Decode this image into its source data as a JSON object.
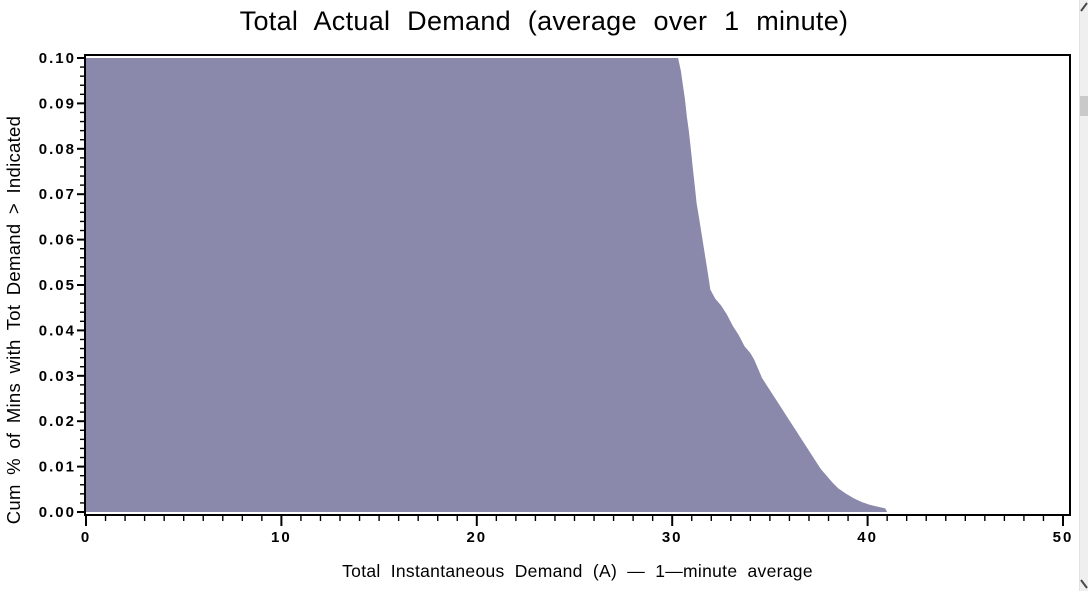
{
  "window": {
    "scrollbar": {
      "track_color": "#efefef",
      "thumb_color": "#c9c9c9",
      "mark_color": "#4a4a4a"
    }
  },
  "chart_data": {
    "type": "area",
    "title": "Total Actual Demand (average over 1 minute)",
    "xlabel": "Total Instantaneous Demand (A) — 1—minute average",
    "ylabel": "Cum % of Mins with Tot Demand > Indicated",
    "xlim": [
      0,
      50
    ],
    "ylim": [
      0,
      0.1
    ],
    "grid": false,
    "fill_color": "#8a88ab",
    "axis_color": "#000000",
    "x_major_ticks": [
      0,
      10,
      20,
      30,
      40,
      50
    ],
    "x_tick_labels": [
      "0",
      "10",
      "20",
      "30",
      "40",
      "50"
    ],
    "x_minor_step": 1,
    "y_major_ticks": [
      0,
      0.01,
      0.02,
      0.03,
      0.04,
      0.05,
      0.06,
      0.07,
      0.08,
      0.09,
      0.1
    ],
    "y_tick_labels": [
      "0.00",
      "0.01",
      "0.02",
      "0.03",
      "0.04",
      "0.05",
      "0.06",
      "0.07",
      "0.08",
      "0.09",
      "0.10"
    ],
    "y_minor_step": 0.002,
    "points": [
      [
        0,
        0.1
      ],
      [
        30.3,
        0.1
      ],
      [
        30.45,
        0.097
      ],
      [
        30.55,
        0.094
      ],
      [
        30.65,
        0.091
      ],
      [
        30.75,
        0.087
      ],
      [
        30.85,
        0.084
      ],
      [
        30.95,
        0.08
      ],
      [
        31.05,
        0.076
      ],
      [
        31.15,
        0.072
      ],
      [
        31.25,
        0.068
      ],
      [
        31.4,
        0.064
      ],
      [
        31.55,
        0.06
      ],
      [
        31.7,
        0.056
      ],
      [
        31.85,
        0.052
      ],
      [
        31.95,
        0.049
      ],
      [
        32.2,
        0.047
      ],
      [
        32.5,
        0.0455
      ],
      [
        32.8,
        0.0435
      ],
      [
        33.1,
        0.041
      ],
      [
        33.4,
        0.039
      ],
      [
        33.7,
        0.0365
      ],
      [
        34.0,
        0.035
      ],
      [
        34.2,
        0.0335
      ],
      [
        34.4,
        0.0315
      ],
      [
        34.6,
        0.0295
      ],
      [
        34.9,
        0.0275
      ],
      [
        35.2,
        0.0255
      ],
      [
        35.5,
        0.0235
      ],
      [
        35.8,
        0.0215
      ],
      [
        36.1,
        0.0195
      ],
      [
        36.4,
        0.0175
      ],
      [
        36.7,
        0.0155
      ],
      [
        37.0,
        0.0135
      ],
      [
        37.3,
        0.0115
      ],
      [
        37.6,
        0.0095
      ],
      [
        37.9,
        0.008
      ],
      [
        38.2,
        0.0065
      ],
      [
        38.5,
        0.0052
      ],
      [
        38.9,
        0.004
      ],
      [
        39.3,
        0.003
      ],
      [
        39.7,
        0.0022
      ],
      [
        40.1,
        0.0016
      ],
      [
        40.5,
        0.0012
      ],
      [
        40.9,
        0.0008
      ],
      [
        41.0,
        0
      ]
    ]
  }
}
